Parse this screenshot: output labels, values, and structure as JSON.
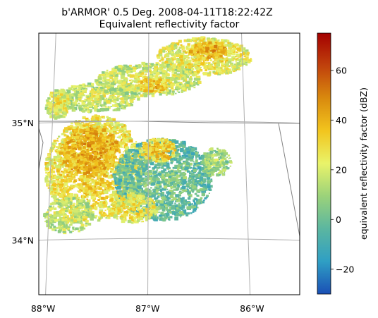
{
  "chart_data": {
    "type": "heatmap",
    "title_line1": "b'ARMOR' 0.5 Deg. 2008-04-11T18:22:42Z",
    "title_line2": "Equivalent reflectivity factor",
    "xlabel": "",
    "ylabel": "",
    "x_ticks": [
      {
        "value": -88,
        "label": "88°W"
      },
      {
        "value": -87,
        "label": "87°W"
      },
      {
        "value": -86,
        "label": "86°W"
      }
    ],
    "y_ticks": [
      {
        "value": 35,
        "label": "35°N"
      },
      {
        "value": 34,
        "label": "34°N"
      }
    ],
    "lon_range": [
      -88.12,
      -85.45
    ],
    "lat_range": [
      33.52,
      35.75
    ],
    "grid": true,
    "colorbar": {
      "label": "equivalent reflectivity factor (dBZ)",
      "range": [
        -30,
        75
      ],
      "ticks": [
        {
          "value": -20,
          "label": "−20"
        },
        {
          "value": 0,
          "label": "0"
        },
        {
          "value": 20,
          "label": "20"
        },
        {
          "value": 40,
          "label": "40"
        },
        {
          "value": 60,
          "label": "60"
        }
      ],
      "colors": [
        "#1a4fb5",
        "#2f9fc4",
        "#5bb6a0",
        "#9bd27a",
        "#e9f36a",
        "#f2c51e",
        "#d98a0e",
        "#c0410c",
        "#a40000"
      ]
    },
    "precip_regions": [
      {
        "name": "northeast-band",
        "lon": -86.4,
        "lat": 35.55,
        "rlon": 0.5,
        "rlat": 0.16,
        "dbz": 30
      },
      {
        "name": "northeast-core",
        "lon": -86.35,
        "lat": 35.6,
        "rlon": 0.2,
        "rlat": 0.07,
        "dbz": 44
      },
      {
        "name": "north-central-band",
        "lon": -87.0,
        "lat": 35.35,
        "rlon": 0.55,
        "rlat": 0.14,
        "dbz": 25
      },
      {
        "name": "north-central-core",
        "lon": -86.95,
        "lat": 35.3,
        "rlon": 0.15,
        "rlat": 0.06,
        "dbz": 40
      },
      {
        "name": "northwest-band",
        "lon": -87.55,
        "lat": 35.2,
        "rlon": 0.45,
        "rlat": 0.12,
        "dbz": 22
      },
      {
        "name": "west-region",
        "lon": -87.55,
        "lat": 34.6,
        "rlon": 0.5,
        "rlat": 0.45,
        "dbz": 34
      },
      {
        "name": "west-core",
        "lon": -87.6,
        "lat": 34.75,
        "rlon": 0.3,
        "rlat": 0.2,
        "dbz": 45
      },
      {
        "name": "central-cluster",
        "lon": -86.85,
        "lat": 34.5,
        "rlon": 0.5,
        "rlat": 0.35,
        "dbz": 5
      },
      {
        "name": "central-core",
        "lon": -86.9,
        "lat": 34.75,
        "rlon": 0.18,
        "rlat": 0.1,
        "dbz": 38
      },
      {
        "name": "south-central",
        "lon": -87.15,
        "lat": 34.25,
        "rlon": 0.25,
        "rlat": 0.12,
        "dbz": 30
      },
      {
        "name": "southwest-cells",
        "lon": -87.8,
        "lat": 34.2,
        "rlon": 0.25,
        "rlat": 0.15,
        "dbz": 22
      },
      {
        "name": "east-cells",
        "lon": -86.3,
        "lat": 34.65,
        "rlon": 0.15,
        "rlat": 0.12,
        "dbz": 15
      },
      {
        "name": "far-northwest",
        "lon": -87.95,
        "lat": 35.15,
        "rlon": 0.12,
        "rlat": 0.12,
        "dbz": 28
      }
    ]
  }
}
